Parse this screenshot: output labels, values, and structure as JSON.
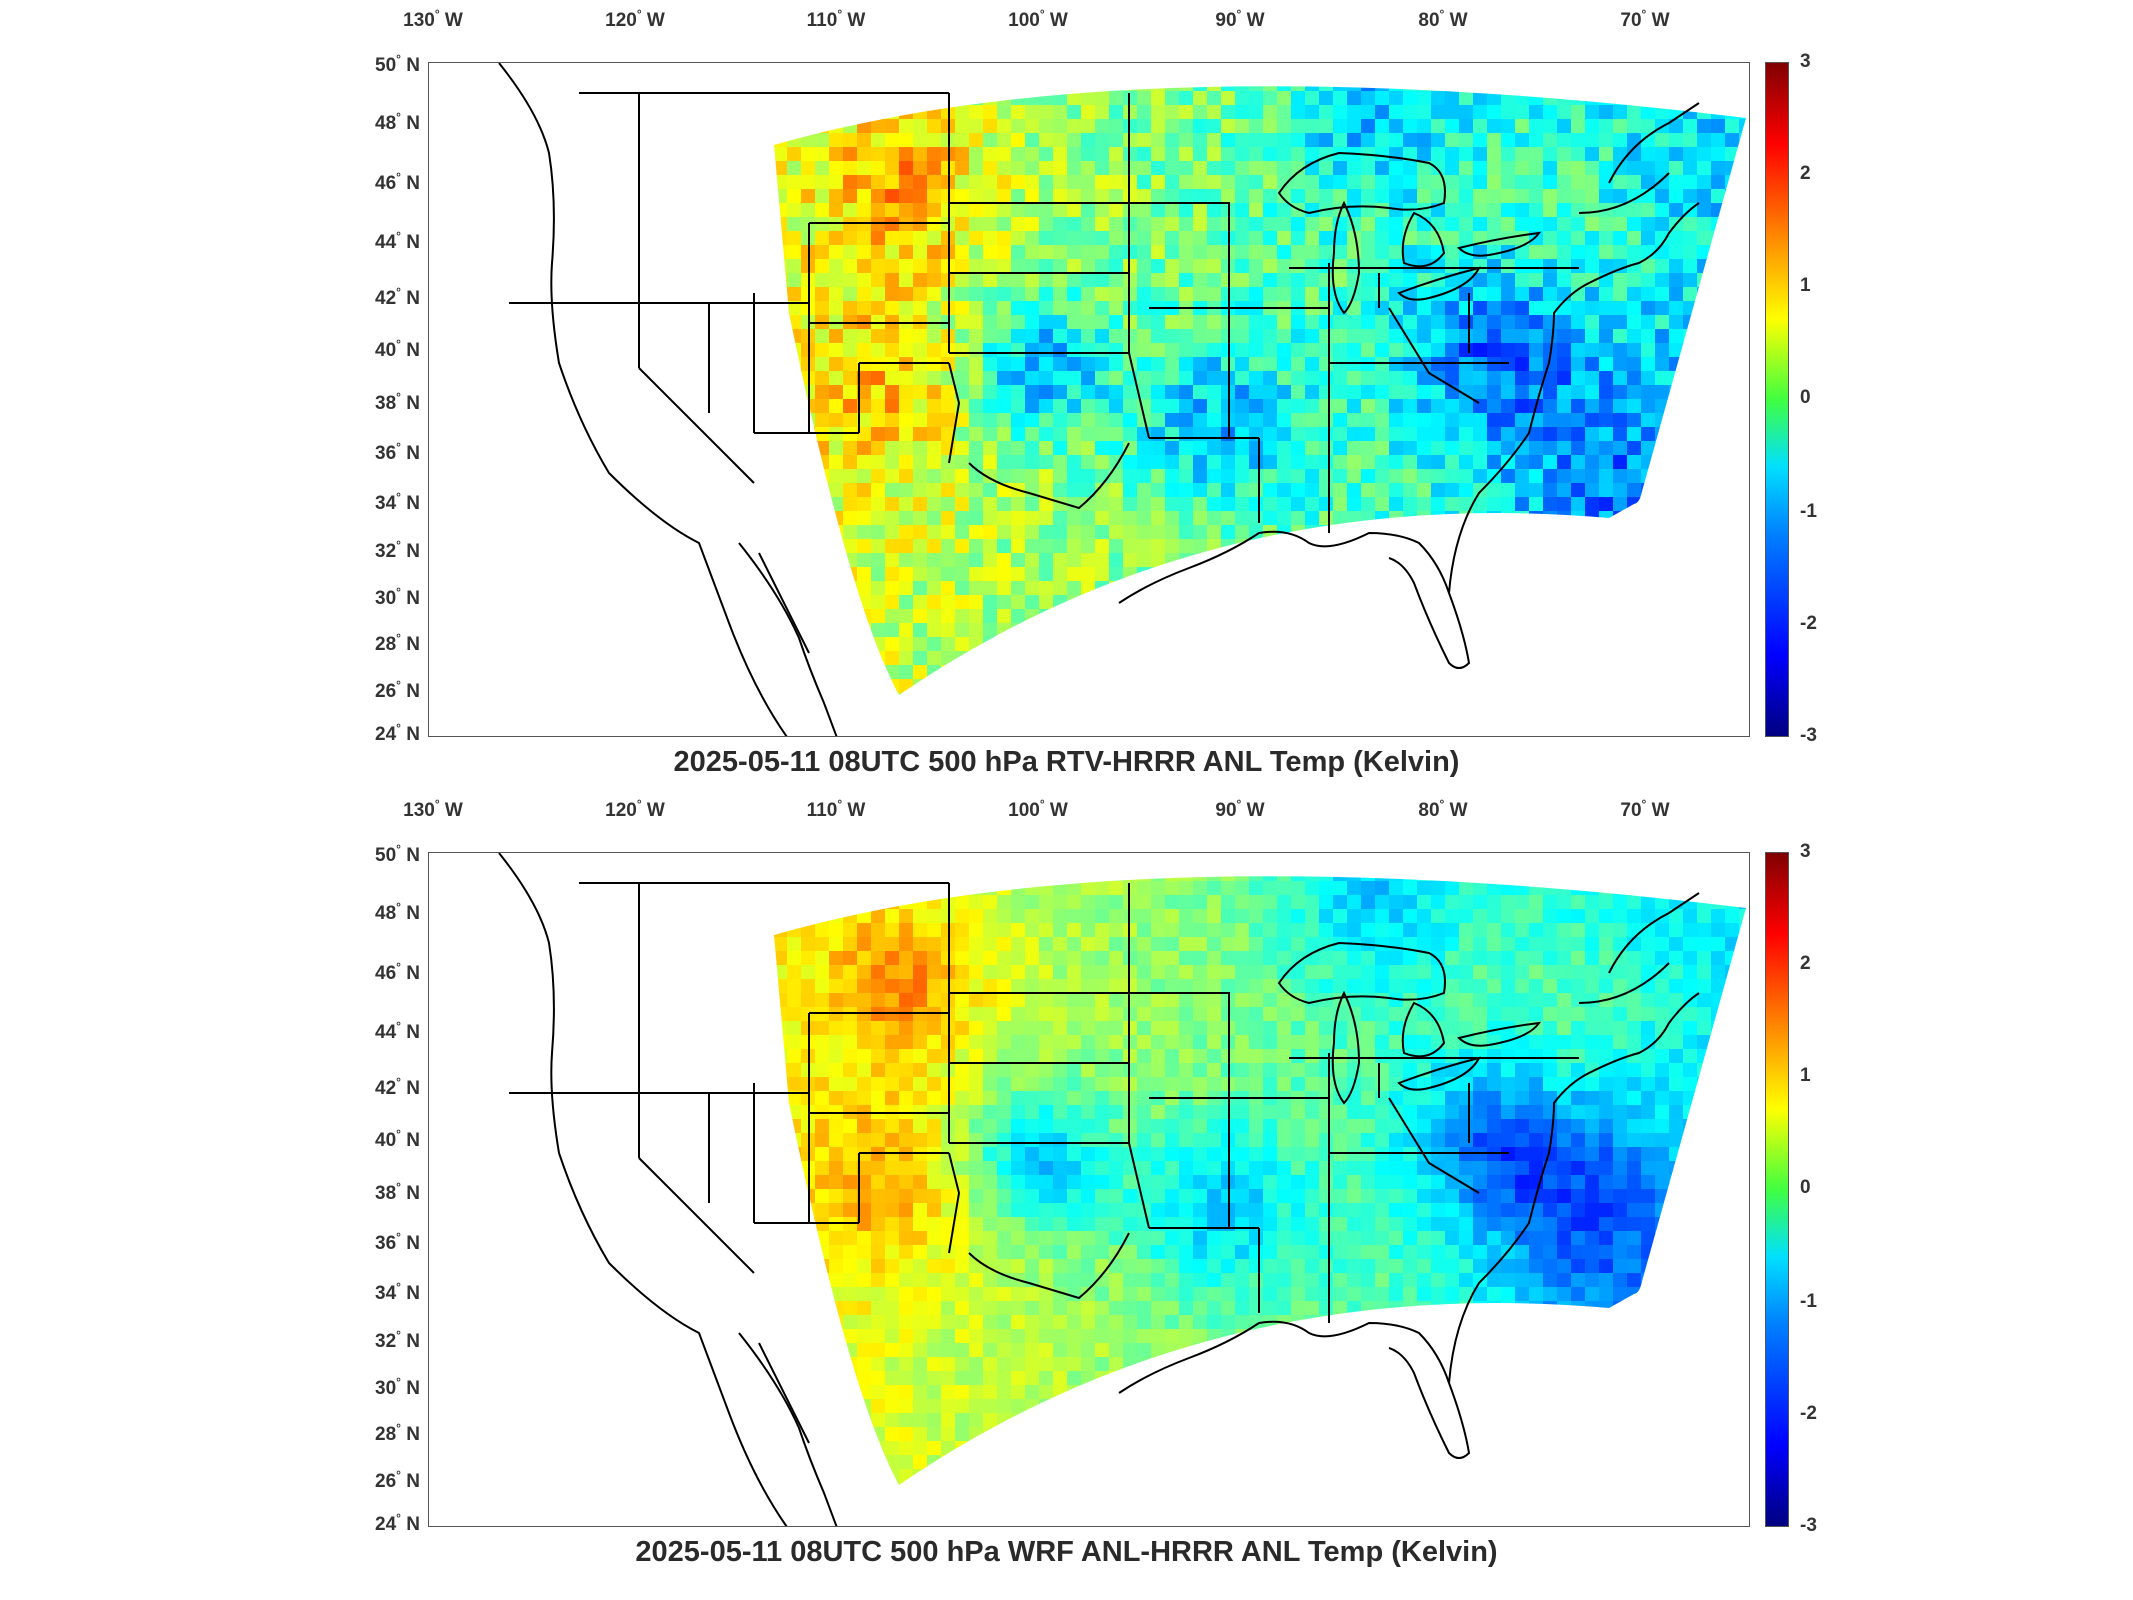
{
  "panels": [
    {
      "title": "2025-05-11 08UTC 500 hPa RTV-HRRR ANL Temp (Kelvin)",
      "variant": "rtv"
    },
    {
      "title": "2025-05-11 08UTC 500 hPa WRF ANL-HRRR ANL Temp (Kelvin)",
      "variant": "wrf"
    }
  ],
  "lon_labels": [
    "130",
    "120",
    "110",
    "100",
    "90",
    "80",
    "70"
  ],
  "lon_suffix": "W",
  "lat_labels": [
    "50",
    "48",
    "46",
    "44",
    "42",
    "40",
    "38",
    "36",
    "34",
    "32",
    "30",
    "28",
    "26",
    "24"
  ],
  "lat_suffix": "N",
  "colorbar": {
    "ticks": [
      "3",
      "2",
      "1",
      "0",
      "-1",
      "-2",
      "-3"
    ],
    "min": -3,
    "max": 3,
    "colormap": "jet"
  }
}
